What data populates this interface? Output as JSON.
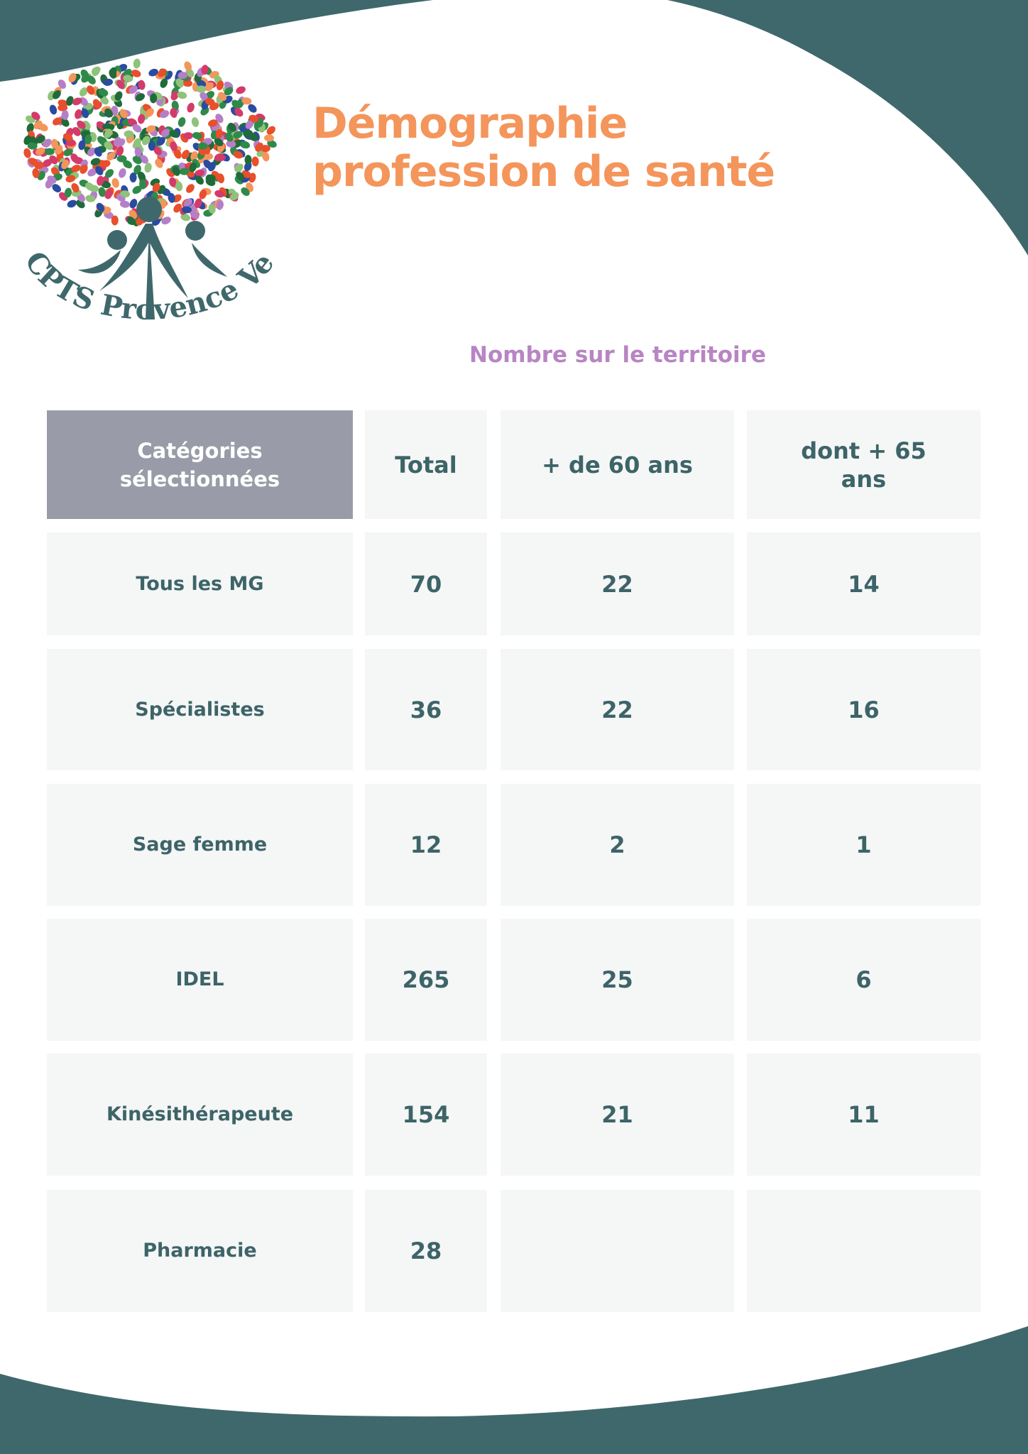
{
  "colors": {
    "teal": "#3f686c",
    "title_orange": "#f4955b",
    "subtitle_purple": "#b885c3",
    "header_grey": "#999ca8",
    "cell_bg": "#f5f6f6",
    "text": "#3d6468"
  },
  "logo": {
    "text": "CPTS Provence Verte",
    "icon": "tree-of-hands-logo"
  },
  "title": {
    "line1": "Démographie",
    "line2": "profession de santé"
  },
  "subtitle": "Nombre sur le territoire",
  "table": {
    "headers": [
      "Catégories sélectionnées",
      "Total",
      "+ de 60 ans",
      "dont + 65 ans"
    ],
    "rows": [
      [
        "Tous les MG",
        "70",
        "22",
        "14"
      ],
      [
        "Spécialistes",
        "36",
        "22",
        "16"
      ],
      [
        "Sage femme",
        "12",
        "2",
        "1"
      ],
      [
        "IDEL",
        "265",
        "25",
        "6"
      ],
      [
        "Kinésithérapeute",
        "154",
        "21",
        "11"
      ],
      [
        "Pharmacie",
        "28",
        "",
        ""
      ]
    ]
  }
}
